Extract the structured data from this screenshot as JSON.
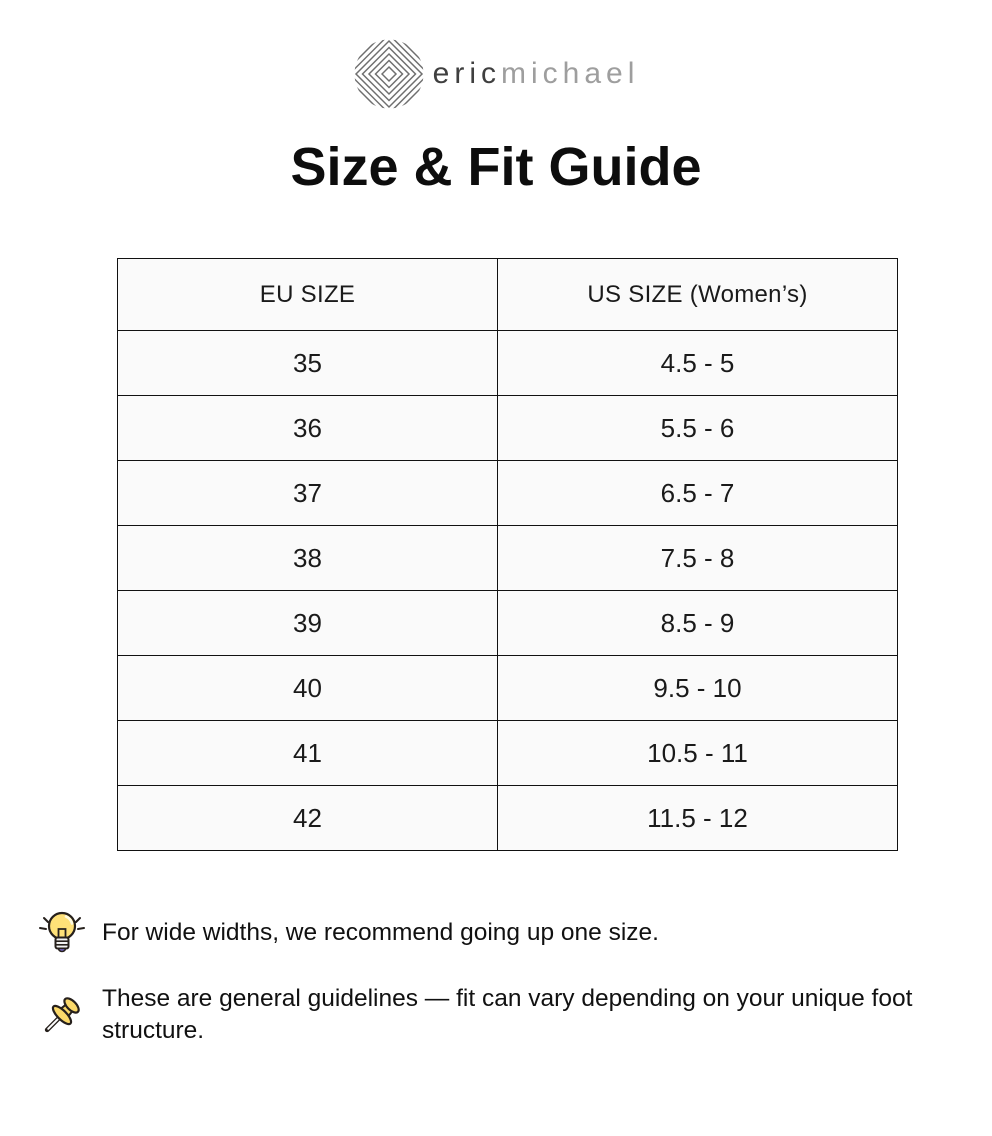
{
  "brand": {
    "name_part1": "eric",
    "name_part2": "michael"
  },
  "title": "Size & Fit Guide",
  "size_table": {
    "headers": [
      "EU SIZE",
      "US SIZE (Women’s)"
    ],
    "rows": [
      [
        "35",
        "4.5 - 5"
      ],
      [
        "36",
        "5.5 - 6"
      ],
      [
        "37",
        "6.5 - 7"
      ],
      [
        "38",
        "7.5 - 8"
      ],
      [
        "39",
        "8.5 - 9"
      ],
      [
        "40",
        "9.5 - 10"
      ],
      [
        "41",
        "10.5 - 11"
      ],
      [
        "42",
        "11.5 - 12"
      ]
    ]
  },
  "tips": [
    {
      "icon": "lightbulb-icon",
      "text": "For wide widths, we recommend going up one size."
    },
    {
      "icon": "pushpin-icon",
      "text": "These are general guidelines — fit can vary depending on your unique foot structure."
    }
  ],
  "colors": {
    "page_bg": "#ffffff",
    "table_cell_bg": "#fafafa",
    "table_border": "#111111",
    "brand_primary_text": "#3f3f3f",
    "brand_secondary_text": "#9e9e9e",
    "heading_text": "#0d0d0d",
    "body_text": "#111111",
    "icon_yellow": "#fbd96a",
    "icon_outline": "#26201c"
  }
}
